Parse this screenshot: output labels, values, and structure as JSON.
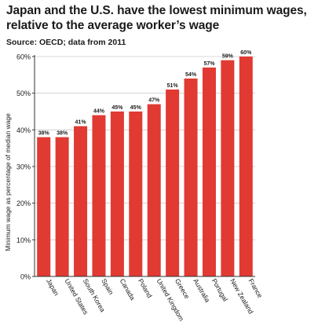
{
  "header": {
    "title": "Japan and the U.S. have the lowest minimum wages, relative to the average worker’s wage",
    "source": "Source: OECD; data from 2011"
  },
  "colors": {
    "bar": "#e03a33",
    "axis": "#333333",
    "grid": "#cccccc",
    "text": "#1a1a1a"
  },
  "chart_data": {
    "type": "bar",
    "title": "Japan and the U.S. have the lowest minimum wages, relative to the average worker’s wage",
    "subtitle": "Source: OECD; data from 2011",
    "xlabel": "",
    "ylabel": "Minimum wage as percentage of median wage",
    "categories": [
      "Japan",
      "United States",
      "South Korea",
      "Spain",
      "Canada",
      "Poland",
      "United Kingdom",
      "Greece",
      "Australia",
      "Portugal",
      "New Zealand",
      "France"
    ],
    "values": [
      38,
      38,
      41,
      44,
      45,
      45,
      47,
      51,
      54,
      57,
      59,
      60
    ],
    "value_labels": [
      "38%",
      "38%",
      "41%",
      "44%",
      "45%",
      "45%",
      "47%",
      "51%",
      "54%",
      "57%",
      "59%",
      "60%"
    ],
    "ylim": [
      0,
      60
    ],
    "yticks": [
      0,
      10,
      20,
      30,
      40,
      50,
      60
    ],
    "ytick_labels": [
      "0%",
      "10%",
      "20%",
      "30%",
      "40%",
      "50%",
      "60%"
    ],
    "grid": true,
    "legend": "none"
  }
}
